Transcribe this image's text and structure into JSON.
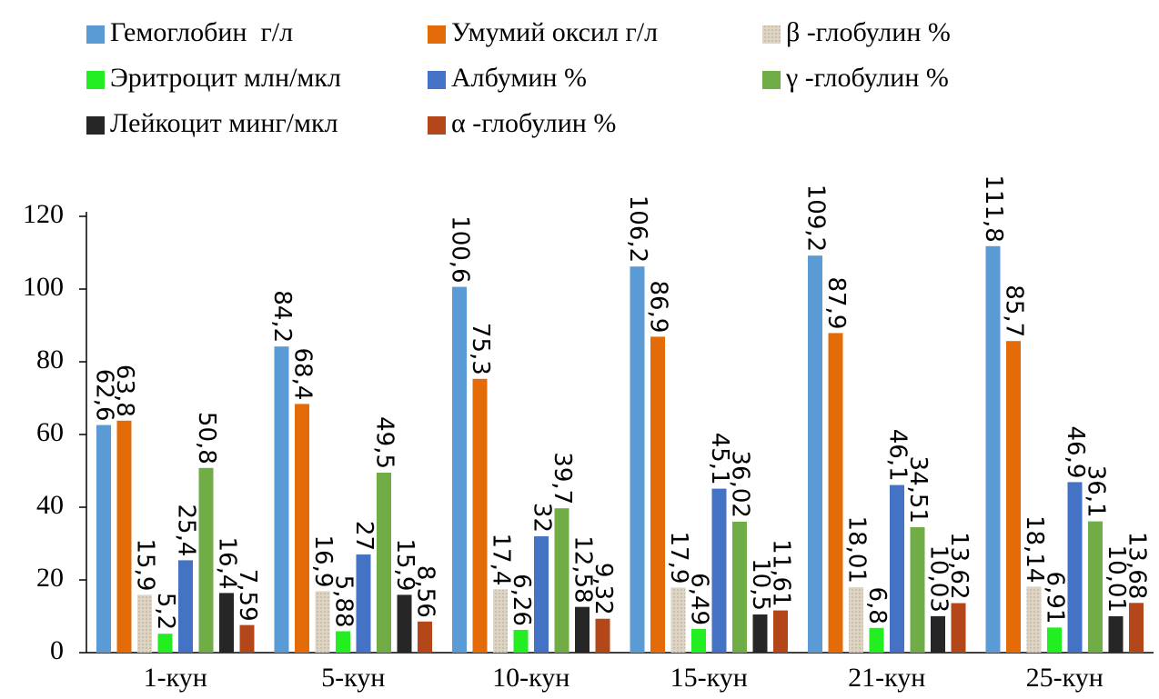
{
  "chart_data": {
    "type": "bar",
    "categories": [
      "1-кун",
      "5-кун",
      "10-кун",
      "15-кун",
      "21-кун",
      "25-кун"
    ],
    "series": [
      {
        "name": "Гемоглобин  г/л",
        "color": "#5b9bd5",
        "values": [
          62.6,
          84.2,
          100.6,
          106.2,
          109.2,
          111.8
        ],
        "value_labels": [
          "62,6",
          "84,2",
          "100,6",
          "106,2",
          "109,2",
          "111,8"
        ]
      },
      {
        "name": "Умумий оксил г/л",
        "color": "#e36c09",
        "values": [
          63.8,
          68.4,
          75.3,
          86.9,
          87.9,
          85.7
        ],
        "value_labels": [
          "63,8",
          "68,4",
          "75,3",
          "86,9",
          "87,9",
          "85,7"
        ]
      },
      {
        "name": "β -глобулин %",
        "color": "#ddd4c4",
        "values": [
          15.9,
          16.9,
          17.4,
          17.9,
          18.01,
          18.14
        ],
        "value_labels": [
          "15,9",
          "16,9",
          "17,4",
          "17,9",
          "18,01",
          "18,14"
        ]
      },
      {
        "name": "Эритроцит млн/мкл",
        "color": "#22ee22",
        "values": [
          5.2,
          5.88,
          6.26,
          6.49,
          6.8,
          6.91
        ],
        "value_labels": [
          "5,2",
          "5,88",
          "6,26",
          "6,49",
          "6,8",
          "6,91"
        ]
      },
      {
        "name": "Албумин %",
        "color": "#4472c4",
        "values": [
          25.4,
          27,
          32,
          45.1,
          46.1,
          46.9
        ],
        "value_labels": [
          "25,4",
          "27",
          "32",
          "45,1",
          "46,1",
          "46,9"
        ]
      },
      {
        "name": "γ -глобулин %",
        "color": "#70ad47",
        "values": [
          50.8,
          49.5,
          39.7,
          36.02,
          34.51,
          36.1
        ],
        "value_labels": [
          "50,8",
          "49,5",
          "39,7",
          "36,02",
          "34,51",
          "36,1"
        ]
      },
      {
        "name": "Лейкоцит минг/мкл",
        "color": "#262626",
        "values": [
          16.4,
          15.9,
          12.58,
          10.5,
          10.03,
          10.01
        ],
        "value_labels": [
          "16,4",
          "15,9",
          "12,58",
          "10,5",
          "10,03",
          "10,01"
        ]
      },
      {
        "name": "α -глобулин %",
        "color": "#b3471a",
        "values": [
          7.59,
          8.56,
          9.32,
          11.61,
          13.62,
          13.68
        ],
        "value_labels": [
          "7,59",
          "8,56",
          "9,32",
          "11,61",
          "13,62",
          "13,68"
        ]
      }
    ],
    "ylim": [
      0,
      120
    ],
    "yticks": [
      0,
      20,
      40,
      60,
      80,
      100,
      120
    ],
    "legend": "top"
  }
}
